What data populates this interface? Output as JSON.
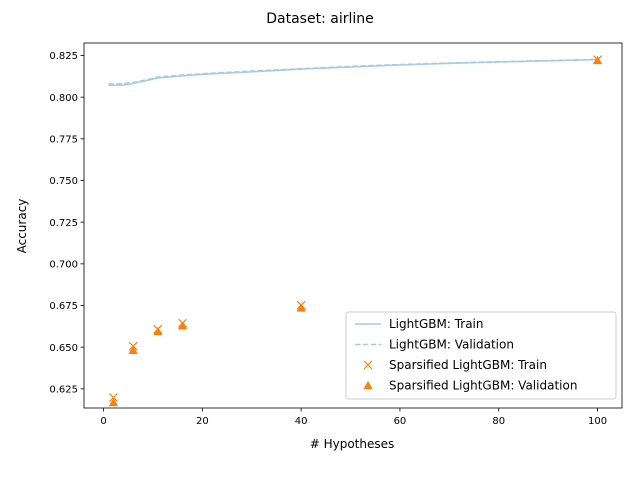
{
  "chart_data": {
    "type": "line",
    "title": "Dataset: airline",
    "xlabel": "# Hypotheses",
    "ylabel": "Accuracy",
    "xlim": [
      -3.95,
      104.95
    ],
    "ylim": [
      0.6135,
      0.8325
    ],
    "xticks": [
      0,
      20,
      40,
      60,
      80,
      100
    ],
    "yticks": [
      0.625,
      0.65,
      0.675,
      0.7,
      0.725,
      0.75,
      0.775,
      0.8,
      0.825
    ],
    "xtick_labels": [
      "0",
      "20",
      "40",
      "60",
      "80",
      "100"
    ],
    "ytick_labels": [
      "0.625",
      "0.650",
      "0.675",
      "0.700",
      "0.725",
      "0.750",
      "0.775",
      "0.800",
      "0.825"
    ],
    "grid": false,
    "legend_position": "bottom-right",
    "series": [
      {
        "name": "LightGBM: Train",
        "style": "solid-line",
        "color": "#a6cbe3",
        "x": [
          1,
          2,
          4,
          6,
          8,
          11,
          16,
          20,
          30,
          40,
          50,
          60,
          70,
          80,
          90,
          100
        ],
        "y": [
          0.8071,
          0.8072,
          0.8072,
          0.8083,
          0.8095,
          0.8115,
          0.8128,
          0.8137,
          0.8152,
          0.8168,
          0.8181,
          0.8193,
          0.8203,
          0.8211,
          0.8218,
          0.8225
        ]
      },
      {
        "name": "LightGBM: Validation",
        "style": "dashed-line",
        "color": "#a6cbe3",
        "x": [
          1,
          2,
          4,
          6,
          8,
          11,
          16,
          20,
          30,
          40,
          50,
          60,
          70,
          80,
          90,
          100
        ],
        "y": [
          0.8079,
          0.8079,
          0.8081,
          0.8088,
          0.81,
          0.8121,
          0.8133,
          0.8141,
          0.8157,
          0.8171,
          0.8185,
          0.8196,
          0.8205,
          0.8213,
          0.822,
          0.8227
        ]
      },
      {
        "name": "Sparsified LightGBM: Train",
        "style": "x-marker",
        "color": "#ff7f0e",
        "x": [
          2,
          6,
          11,
          16,
          40,
          100
        ],
        "y": [
          0.6198,
          0.6506,
          0.6608,
          0.6644,
          0.6752,
          0.8225
        ]
      },
      {
        "name": "Sparsified LightGBM: Validation",
        "style": "triangle-marker",
        "color": "#ff7f0e",
        "x": [
          2,
          6,
          11,
          16,
          40,
          100
        ],
        "y": [
          0.6168,
          0.6481,
          0.6594,
          0.6628,
          0.6735,
          0.822
        ]
      }
    ]
  }
}
